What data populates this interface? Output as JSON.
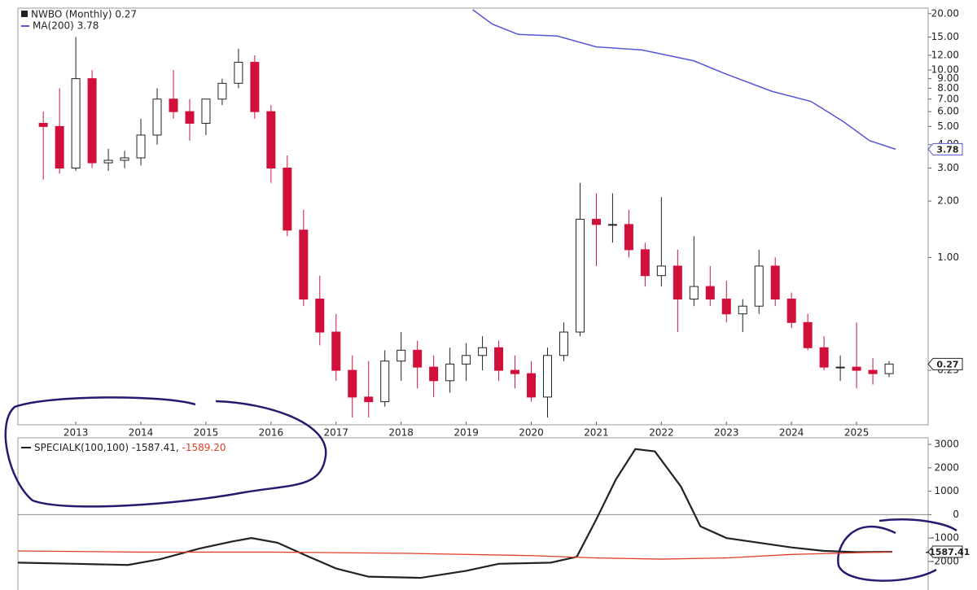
{
  "chart_data": [
    {
      "type": "candlestick",
      "title": "NWBO (Monthly) 0.27",
      "log_scale": true,
      "xlim": [
        2012.11,
        2026.1
      ],
      "xticks": [
        2013,
        2014,
        2015,
        2016,
        2017,
        2018,
        2019,
        2020,
        2021,
        2022,
        2023,
        2024,
        2025
      ],
      "ylim": [
        0.128,
        21.4
      ],
      "yticks": [
        {
          "value": 20,
          "label": "20.00"
        },
        {
          "value": 15,
          "label": "15.00"
        },
        {
          "value": 12,
          "label": "12.00"
        },
        {
          "value": 10,
          "label": "10.00"
        },
        {
          "value": 9,
          "label": "9.00"
        },
        {
          "value": 8,
          "label": "8.00"
        },
        {
          "value": 7,
          "label": "7.00"
        },
        {
          "value": 6,
          "label": "6.00"
        },
        {
          "value": 5,
          "label": "5.00"
        },
        {
          "value": 4,
          "label": "4.00"
        },
        {
          "value": 3,
          "label": "3.00"
        },
        {
          "value": 2,
          "label": "2.00"
        },
        {
          "value": 1,
          "label": "1.00"
        },
        {
          "value": 0.25,
          "label": "0.25"
        }
      ],
      "up_color": "#ffffff",
      "down_color": "#d0103a",
      "x": [
        2012.5,
        2012.75,
        2013.0,
        2013.25,
        2013.5,
        2013.75,
        2014.0,
        2014.25,
        2014.5,
        2014.75,
        2015.0,
        2015.25,
        2015.5,
        2015.75,
        2016.0,
        2016.25,
        2016.5,
        2016.75,
        2017.0,
        2017.25,
        2017.5,
        2017.75,
        2018.0,
        2018.25,
        2018.5,
        2018.75,
        2019.0,
        2019.25,
        2019.5,
        2019.75,
        2020.0,
        2020.25,
        2020.5,
        2020.75,
        2021.0,
        2021.25,
        2021.5,
        2021.75,
        2022.0,
        2022.25,
        2022.5,
        2022.75,
        2023.0,
        2023.25,
        2023.5,
        2023.75,
        2024.0,
        2024.25,
        2024.5,
        2024.75,
        2025.0,
        2025.25,
        2025.5
      ],
      "open": [
        5.2,
        5.0,
        3.0,
        9.0,
        3.2,
        3.3,
        3.4,
        4.5,
        7.0,
        6.0,
        5.2,
        7.0,
        8.5,
        11,
        6,
        3.0,
        1.4,
        0.6,
        0.4,
        0.25,
        0.18,
        0.17,
        0.28,
        0.32,
        0.26,
        0.22,
        0.27,
        0.3,
        0.33,
        0.25,
        0.24,
        0.18,
        0.3,
        0.4,
        1.6,
        1.5,
        1.5,
        1.1,
        0.8,
        0.9,
        0.6,
        0.7,
        0.6,
        0.5,
        0.55,
        0.9,
        0.6,
        0.45,
        0.33,
        0.26,
        0.26,
        0.25,
        0.24
      ],
      "high": [
        6,
        8,
        15,
        10,
        3.8,
        3.7,
        5.5,
        8,
        10,
        7,
        7,
        9,
        13,
        12,
        6.5,
        3.5,
        1.8,
        0.8,
        0.5,
        0.3,
        0.28,
        0.32,
        0.4,
        0.36,
        0.3,
        0.33,
        0.35,
        0.38,
        0.36,
        0.3,
        0.28,
        0.33,
        0.45,
        2.5,
        2.2,
        2.2,
        1.8,
        1.2,
        2.1,
        1.1,
        1.3,
        0.9,
        0.75,
        0.6,
        1.1,
        1.0,
        0.65,
        0.5,
        0.38,
        0.3,
        0.45,
        0.29,
        0.28
      ],
      "low": [
        2.6,
        2.8,
        2.9,
        3.0,
        2.9,
        3.0,
        3.1,
        4.0,
        5.5,
        4.2,
        4.5,
        6.5,
        8.0,
        5.5,
        2.5,
        1.3,
        0.55,
        0.34,
        0.22,
        0.14,
        0.14,
        0.16,
        0.22,
        0.2,
        0.18,
        0.19,
        0.22,
        0.25,
        0.22,
        0.2,
        0.17,
        0.14,
        0.28,
        0.38,
        0.9,
        1.2,
        1.0,
        0.7,
        0.7,
        0.4,
        0.55,
        0.55,
        0.45,
        0.4,
        0.5,
        0.55,
        0.42,
        0.32,
        0.25,
        0.22,
        0.2,
        0.21,
        0.23
      ],
      "close": [
        5.0,
        3.0,
        9.0,
        3.2,
        3.3,
        3.4,
        4.5,
        7.0,
        6.0,
        5.2,
        7.0,
        8.5,
        11,
        6,
        3.0,
        1.4,
        0.6,
        0.4,
        0.25,
        0.18,
        0.17,
        0.28,
        0.32,
        0.26,
        0.22,
        0.27,
        0.3,
        0.33,
        0.25,
        0.24,
        0.18,
        0.3,
        0.4,
        1.6,
        1.5,
        1.5,
        1.1,
        0.8,
        0.9,
        0.6,
        0.7,
        0.6,
        0.5,
        0.55,
        0.9,
        0.6,
        0.45,
        0.33,
        0.26,
        0.26,
        0.25,
        0.24,
        0.27
      ],
      "ma": {
        "name": "MA(200) 3.78",
        "color": "#5555d8",
        "x": [
          2019.1,
          2019.4,
          2019.8,
          2020.4,
          2021.0,
          2021.7,
          2022.5,
          2023.0,
          2023.7,
          2024.3,
          2024.8,
          2025.2,
          2025.6
        ],
        "values": [
          21,
          17.6,
          15.5,
          15.2,
          13.3,
          12.8,
          11.2,
          9.5,
          7.7,
          6.8,
          5.3,
          4.2,
          3.78
        ]
      }
    },
    {
      "type": "line",
      "legend": [
        "SPECIALK(100,100) -1587.41,",
        "-1589.20"
      ],
      "xlim": [
        2012.11,
        2026.1
      ],
      "ylim": [
        -3045,
        3280
      ],
      "yticks": [
        3000,
        2000,
        1000,
        0,
        -1000,
        -2000
      ],
      "zero_line": true,
      "series": [
        {
          "color": "#222222",
          "x": [
            2012.11,
            2013.0,
            2013.8,
            2014.3,
            2014.9,
            2015.4,
            2015.7,
            2016.1,
            2016.5,
            2017.0,
            2017.5,
            2018.3,
            2019.0,
            2019.5,
            2020.3,
            2020.7,
            2021.0,
            2021.3,
            2021.6,
            2021.9,
            2022.3,
            2022.6,
            2023.0,
            2023.5,
            2024.0,
            2024.5,
            2025.0,
            2025.55
          ],
          "values": [
            -2050,
            -2100,
            -2150,
            -1900,
            -1450,
            -1150,
            -1000,
            -1200,
            -1700,
            -2300,
            -2650,
            -2700,
            -2400,
            -2100,
            -2050,
            -1800,
            -200,
            1500,
            2800,
            2700,
            1200,
            -500,
            -1000,
            -1200,
            -1400,
            -1550,
            -1600,
            -1587.41
          ]
        },
        {
          "color": "#e0402a",
          "x": [
            2012.11,
            2014.0,
            2016.0,
            2018.0,
            2020.0,
            2021.0,
            2022.0,
            2023.0,
            2024.0,
            2025.55
          ],
          "values": [
            -1550,
            -1600,
            -1600,
            -1650,
            -1750,
            -1850,
            -1900,
            -1850,
            -1700,
            -1589.2
          ]
        }
      ]
    }
  ]
}
